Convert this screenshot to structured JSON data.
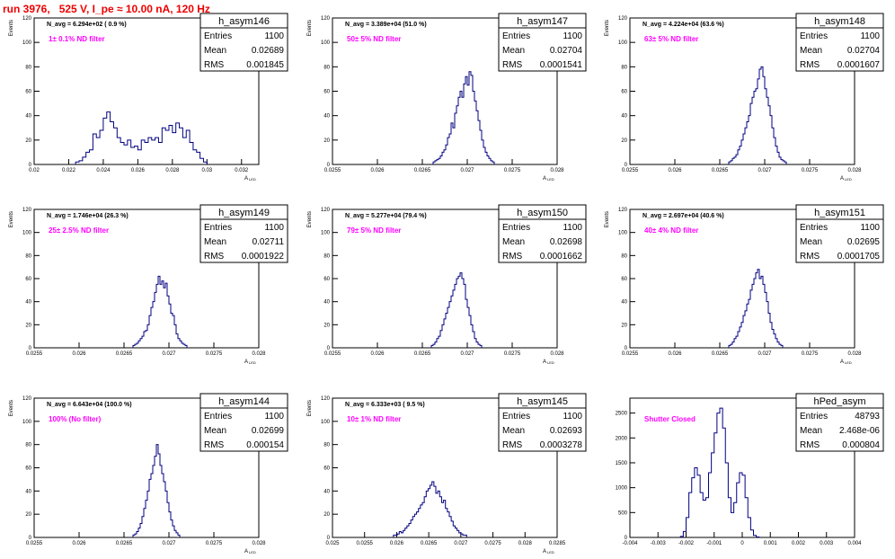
{
  "run_title": "run 3976,   525 V, I_pe ≈ 10.00 nA, 120 Hz",
  "colors": {
    "hist": "#000080",
    "note": "#ff00ff",
    "title": "#ee0000"
  },
  "stats_labels": {
    "entries": "Entries",
    "mean": "Mean",
    "rms": "RMS"
  },
  "chart_data": [
    {
      "type": "bar",
      "name": "h_asym146",
      "entries": "1100",
      "mean": "0.02689",
      "rms": "0.001845",
      "navg": "N_avg = 6.294e+02 ( 0.9 %)",
      "note": "1± 0.1% ND filter",
      "ylabel": "Events",
      "xlabel": "A",
      "xlabel_sub": "LED",
      "xlim": [
        0.02,
        0.033
      ],
      "ylim": [
        0,
        120
      ],
      "xticks": [
        0.02,
        0.022,
        0.024,
        0.026,
        0.028,
        0.03,
        0.032
      ],
      "xtick_labels": [
        "0.02",
        "0.022",
        "0.024",
        "0.026",
        "0.028",
        "0.03",
        "0.032"
      ],
      "yticks": [
        0,
        20,
        40,
        60,
        80,
        100,
        120
      ],
      "bin_start": 0.0224,
      "bin_width": 0.0002,
      "values": [
        2,
        3,
        6,
        10,
        12,
        25,
        22,
        28,
        38,
        43,
        35,
        30,
        22,
        18,
        16,
        20,
        14,
        15,
        12,
        20,
        18,
        22,
        20,
        22,
        18,
        30,
        28,
        32,
        26,
        34,
        30,
        22,
        28,
        18,
        12,
        10,
        5,
        2
      ]
    },
    {
      "type": "bar",
      "name": "h_asym147",
      "entries": "1100",
      "mean": "0.02704",
      "rms": "0.0001541",
      "navg": "N_avg = 3.389e+04 (51.0 %)",
      "note": "50± 5% ND filter",
      "ylabel": "Events",
      "xlabel": "A",
      "xlabel_sub": "LED",
      "xlim": [
        0.0255,
        0.028
      ],
      "ylim": [
        0,
        120
      ],
      "xticks": [
        0.0255,
        0.026,
        0.0265,
        0.027,
        0.0275,
        0.028
      ],
      "xtick_labels": [
        "0.0255",
        "0.026",
        "0.0265",
        "0.027",
        "0.0275",
        "0.028"
      ],
      "yticks": [
        0,
        20,
        40,
        60,
        80,
        100,
        120
      ],
      "bin_start": 0.02662,
      "bin_width": 2e-05,
      "values": [
        2,
        3,
        4,
        5,
        7,
        10,
        12,
        16,
        22,
        25,
        34,
        30,
        42,
        48,
        55,
        60,
        55,
        66,
        72,
        65,
        76,
        73,
        60,
        52,
        44,
        36,
        28,
        20,
        14,
        10,
        7,
        5,
        3,
        2
      ]
    },
    {
      "type": "bar",
      "name": "h_asym148",
      "entries": "1100",
      "mean": "0.02704",
      "rms": "0.0001607",
      "navg": "N_avg = 4.224e+04 (63.6 %)",
      "note": "63± 5% ND filter",
      "ylabel": "Events",
      "xlabel": "A",
      "xlabel_sub": "LED",
      "xlim": [
        0.0255,
        0.028
      ],
      "ylim": [
        0,
        120
      ],
      "xticks": [
        0.0255,
        0.026,
        0.0265,
        0.027,
        0.0275,
        0.028
      ],
      "xtick_labels": [
        "0.0255",
        "0.026",
        "0.0265",
        "0.027",
        "0.0275",
        "0.028"
      ],
      "yticks": [
        0,
        20,
        40,
        60,
        80,
        100,
        120
      ],
      "bin_start": 0.0266,
      "bin_width": 2e-05,
      "values": [
        2,
        3,
        5,
        6,
        8,
        12,
        15,
        20,
        25,
        30,
        35,
        40,
        50,
        55,
        60,
        62,
        70,
        78,
        80,
        72,
        62,
        55,
        48,
        40,
        30,
        22,
        15,
        10,
        6,
        4,
        3,
        2
      ]
    },
    {
      "type": "bar",
      "name": "h_asym149",
      "entries": "1100",
      "mean": "0.02711",
      "rms": "0.0001922",
      "navg": "N_avg = 1.746e+04 (26.3 %)",
      "note": "25± 2.5% ND filter",
      "ylabel": "Events",
      "xlabel": "A",
      "xlabel_sub": "LED",
      "xlim": [
        0.0255,
        0.028
      ],
      "ylim": [
        0,
        120
      ],
      "xticks": [
        0.0255,
        0.026,
        0.0265,
        0.027,
        0.0275,
        0.028
      ],
      "xtick_labels": [
        "0.0255",
        "0.026",
        "0.0265",
        "0.027",
        "0.0275",
        "0.028"
      ],
      "yticks": [
        0,
        20,
        40,
        60,
        80,
        100,
        120
      ],
      "bin_start": 0.0266,
      "bin_width": 2e-05,
      "values": [
        2,
        3,
        4,
        6,
        8,
        10,
        14,
        15,
        20,
        28,
        35,
        40,
        48,
        55,
        62,
        55,
        58,
        52,
        56,
        45,
        38,
        30,
        28,
        20,
        12,
        8,
        6,
        4,
        3,
        2
      ]
    },
    {
      "type": "bar",
      "name": "h_asym150",
      "entries": "1100",
      "mean": "0.02698",
      "rms": "0.0001662",
      "navg": "N_avg = 5.277e+04 (79.4 %)",
      "note": "79± 5% ND filter",
      "ylabel": "Events",
      "xlabel": "A",
      "xlabel_sub": "LED",
      "xlim": [
        0.0255,
        0.028
      ],
      "ylim": [
        0,
        120
      ],
      "xticks": [
        0.0255,
        0.026,
        0.0265,
        0.027,
        0.0275,
        0.028
      ],
      "xtick_labels": [
        "0.0255",
        "0.026",
        "0.0265",
        "0.027",
        "0.0275",
        "0.028"
      ],
      "yticks": [
        0,
        20,
        40,
        60,
        80,
        100,
        120
      ],
      "bin_start": 0.0266,
      "bin_width": 2e-05,
      "values": [
        2,
        3,
        5,
        8,
        10,
        15,
        20,
        25,
        30,
        35,
        40,
        45,
        50,
        55,
        60,
        62,
        65,
        60,
        55,
        42,
        35,
        28,
        20,
        14,
        8,
        5,
        3,
        2
      ]
    },
    {
      "type": "bar",
      "name": "h_asym151",
      "entries": "1100",
      "mean": "0.02695",
      "rms": "0.0001705",
      "navg": "N_avg = 2.697e+04 (40.6 %)",
      "note": "40± 4% ND filter",
      "ylabel": "Events",
      "xlabel": "A",
      "xlabel_sub": "LED",
      "xlim": [
        0.0255,
        0.028
      ],
      "ylim": [
        0,
        120
      ],
      "xticks": [
        0.0255,
        0.026,
        0.0265,
        0.027,
        0.0275,
        0.028
      ],
      "xtick_labels": [
        "0.0255",
        "0.026",
        "0.0265",
        "0.027",
        "0.0275",
        "0.028"
      ],
      "yticks": [
        0,
        20,
        40,
        60,
        80,
        100,
        120
      ],
      "bin_start": 0.0266,
      "bin_width": 2e-05,
      "values": [
        2,
        3,
        5,
        8,
        10,
        14,
        18,
        22,
        28,
        32,
        38,
        42,
        50,
        55,
        60,
        65,
        68,
        60,
        62,
        55,
        48,
        40,
        30,
        22,
        16,
        12,
        8,
        5,
        3,
        2
      ]
    },
    {
      "type": "bar",
      "name": "h_asym144",
      "entries": "1100",
      "mean": "0.02699",
      "rms": "0.000154",
      "navg": "N_avg = 6.643e+04 (100.0 %)",
      "note": "100% (No filter)",
      "ylabel": "Events",
      "xlabel": "A",
      "xlabel_sub": "LED",
      "xlim": [
        0.0255,
        0.028
      ],
      "ylim": [
        0,
        120
      ],
      "xticks": [
        0.0255,
        0.026,
        0.0265,
        0.027,
        0.0275,
        0.028
      ],
      "xtick_labels": [
        "0.0255",
        "0.026",
        "0.0265",
        "0.027",
        "0.0275",
        "0.028"
      ],
      "yticks": [
        0,
        20,
        40,
        60,
        80,
        100,
        120
      ],
      "bin_start": 0.0266,
      "bin_width": 2e-05,
      "values": [
        2,
        3,
        5,
        8,
        12,
        18,
        25,
        32,
        40,
        50,
        55,
        62,
        70,
        80,
        72,
        62,
        55,
        48,
        40,
        30,
        22,
        15,
        10,
        6,
        4,
        2
      ]
    },
    {
      "type": "bar",
      "name": "h_asym145",
      "entries": "1100",
      "mean": "0.02693",
      "rms": "0.0003278",
      "navg": "N_avg = 6.333e+03 ( 9.5 %)",
      "note": "10± 1% ND filter",
      "ylabel": "Events",
      "xlabel": "A",
      "xlabel_sub": "LED",
      "xlim": [
        0.025,
        0.0285
      ],
      "ylim": [
        0,
        120
      ],
      "xticks": [
        0.025,
        0.0255,
        0.026,
        0.0265,
        0.027,
        0.0275,
        0.028,
        0.0285
      ],
      "xtick_labels": [
        "0.025",
        "0.0255",
        "0.026",
        "0.0265",
        "0.027",
        "0.0275",
        "0.028",
        "0.0285"
      ],
      "yticks": [
        0,
        20,
        40,
        60,
        80,
        100,
        120
      ],
      "bin_start": 0.02595,
      "bin_width": 3e-05,
      "values": [
        2,
        2,
        3,
        5,
        4,
        6,
        8,
        10,
        12,
        15,
        18,
        20,
        22,
        25,
        28,
        30,
        35,
        40,
        42,
        45,
        48,
        44,
        38,
        40,
        35,
        30,
        32,
        25,
        22,
        18,
        14,
        10,
        8,
        6,
        4,
        3,
        2,
        2
      ]
    },
    {
      "type": "bar",
      "name": "hPed_asym",
      "entries": "48793",
      "mean": "2.468e-06",
      "rms": "0.000804",
      "note": "Shutter Closed",
      "ylabel": "",
      "xlabel": "",
      "xlim": [
        -0.004,
        0.004
      ],
      "ylim": [
        0,
        2800
      ],
      "xticks": [
        -0.004,
        -0.003,
        -0.002,
        -0.001,
        0,
        0.001,
        0.002,
        0.003,
        0.004
      ],
      "xtick_labels": [
        "-0.004",
        "-0.003",
        "-0.002",
        "-0.001",
        "0",
        "0.001",
        "0.002",
        "0.003",
        "0.004"
      ],
      "yticks": [
        0,
        500,
        1000,
        1500,
        2000,
        2500
      ],
      "bin_start": -0.0022,
      "bin_width": 0.0001,
      "values": [
        20,
        120,
        400,
        900,
        1200,
        1400,
        1250,
        900,
        750,
        800,
        1300,
        1700,
        2100,
        2500,
        2600,
        2200,
        1500,
        800,
        500,
        700,
        1100,
        1300,
        1250,
        800,
        400,
        150,
        40,
        10
      ]
    }
  ]
}
